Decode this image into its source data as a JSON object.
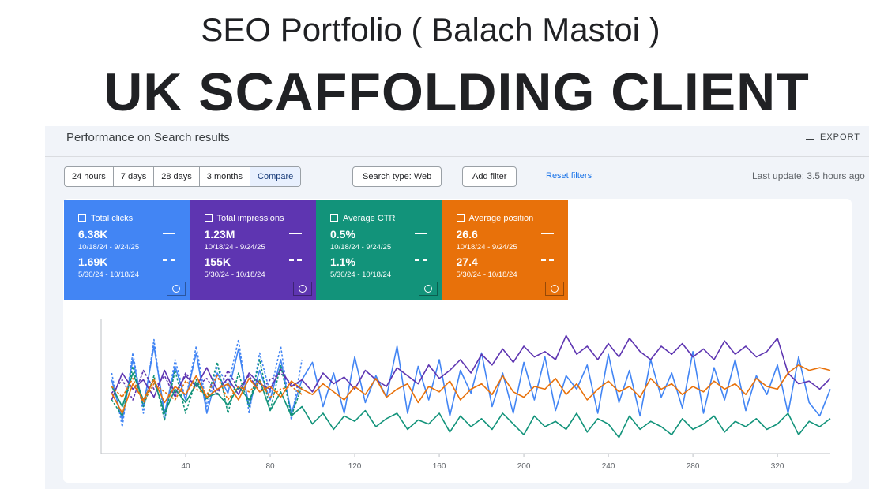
{
  "header": {
    "title": "SEO Portfolio ( Balach Mastoi )",
    "subtitle": "UK SCAFFOLDING CLIENT"
  },
  "panel": {
    "title": "Performance on Search results",
    "export": "EXPORT",
    "date_filters": [
      "24 hours",
      "7 days",
      "28 days",
      "3 months",
      "Compare"
    ],
    "search_type": "Search type: Web",
    "add_filter": "Add filter",
    "reset": "Reset filters",
    "last_update": "Last update: 3.5 hours ago"
  },
  "chart_data": {
    "type": "line",
    "x": [
      5,
      10,
      15,
      20,
      25,
      30,
      35,
      40,
      45,
      50,
      55,
      60,
      65,
      70,
      75,
      80,
      85,
      90,
      95,
      100,
      105,
      110,
      115,
      120,
      125,
      130,
      135,
      140,
      145,
      150,
      155,
      160,
      165,
      170,
      175,
      180,
      185,
      190,
      195,
      200,
      205,
      210,
      215,
      220,
      225,
      230,
      235,
      240,
      245,
      250,
      255,
      260,
      265,
      270,
      275,
      280,
      285,
      290,
      295,
      300,
      305,
      310,
      315,
      320,
      325,
      330,
      335,
      340,
      345
    ],
    "xlim": [
      0,
      345
    ],
    "xticks": [
      40,
      80,
      120,
      160,
      200,
      240,
      280,
      320
    ],
    "ylim": [
      0,
      100
    ],
    "series": [
      {
        "name": "Total clicks",
        "color": "#4285f4",
        "current": "6.38K",
        "current_range": "10/18/24 - 9/24/25",
        "previous": "1.69K",
        "previous_range": "5/30/24 - 10/18/24",
        "values": [
          55,
          25,
          70,
          35,
          80,
          30,
          65,
          40,
          75,
          30,
          60,
          45,
          78,
          35,
          62,
          40,
          70,
          30,
          55,
          68,
          35,
          60,
          30,
          72,
          38,
          58,
          42,
          80,
          30,
          65,
          40,
          70,
          28,
          62,
          45,
          75,
          35,
          60,
          30,
          68,
          40,
          72,
          32,
          58,
          48,
          66,
          30,
          74,
          38,
          62,
          28,
          70,
          42,
          60,
          34,
          76,
          30,
          64,
          40,
          70,
          32,
          58,
          44,
          66,
          30,
          72,
          38,
          28,
          48
        ],
        "previous_values": [
          60,
          20,
          75,
          30,
          85,
          25,
          70,
          40,
          80,
          35,
          65,
          50,
          85,
          30,
          75,
          45,
          80,
          25,
          70,
          null,
          null,
          null,
          null,
          null,
          null,
          null,
          null,
          null,
          null,
          null,
          null,
          null,
          null,
          null,
          null,
          null,
          null,
          null,
          null,
          null,
          null,
          null,
          null,
          null,
          null,
          null,
          null,
          null,
          null,
          null,
          null,
          null,
          null,
          null,
          null,
          null,
          null,
          null,
          null,
          null,
          null,
          null,
          null,
          null,
          null,
          null,
          null,
          null,
          null
        ]
      },
      {
        "name": "Total impressions",
        "color": "#5e35b1",
        "current": "1.23M",
        "current_range": "10/18/24 - 9/24/25",
        "previous": "155K",
        "previous_range": "5/30/24 - 10/18/24",
        "values": [
          40,
          60,
          48,
          55,
          42,
          62,
          45,
          58,
          50,
          64,
          47,
          56,
          44,
          60,
          52,
          48,
          63,
          50,
          55,
          46,
          60,
          52,
          57,
          48,
          62,
          55,
          50,
          64,
          58,
          52,
          66,
          56,
          62,
          70,
          60,
          74,
          66,
          78,
          68,
          80,
          72,
          76,
          70,
          88,
          74,
          80,
          70,
          82,
          72,
          86,
          76,
          70,
          80,
          74,
          82,
          72,
          78,
          70,
          84,
          74,
          80,
          72,
          76,
          86,
          60,
          52,
          54,
          48,
          56
        ],
        "previous_values": [
          45,
          55,
          40,
          62,
          48,
          58,
          42,
          60,
          50,
          56,
          44,
          62,
          48,
          58,
          46,
          55,
          60,
          52,
          48,
          null,
          null,
          null,
          null,
          null,
          null,
          null,
          null,
          null,
          null,
          null,
          null,
          null,
          null,
          null,
          null,
          null,
          null,
          null,
          null,
          null,
          null,
          null,
          null,
          null,
          null,
          null,
          null,
          null,
          null,
          null,
          null,
          null,
          null,
          null,
          null,
          null,
          null,
          null,
          null,
          null,
          null,
          null,
          null,
          null,
          null,
          null,
          null,
          null,
          null
        ]
      },
      {
        "name": "Average CTR",
        "color": "#12937a",
        "current": "0.5%",
        "current_range": "10/18/24 - 9/24/25",
        "previous": "1.1%",
        "previous_range": "5/30/24 - 10/18/24",
        "values": [
          50,
          35,
          60,
          40,
          55,
          30,
          48,
          38,
          52,
          42,
          45,
          36,
          50,
          40,
          55,
          32,
          46,
          28,
          35,
          22,
          30,
          18,
          28,
          24,
          32,
          20,
          26,
          30,
          18,
          25,
          22,
          30,
          16,
          28,
          20,
          26,
          18,
          30,
          22,
          14,
          28,
          20,
          24,
          18,
          30,
          16,
          26,
          22,
          12,
          28,
          18,
          24,
          20,
          14,
          26,
          18,
          22,
          28,
          16,
          24,
          20,
          26,
          18,
          22,
          30,
          14,
          24,
          20,
          26
        ],
        "previous_values": [
          40,
          28,
          65,
          35,
          58,
          25,
          62,
          30,
          55,
          40,
          68,
          30,
          60,
          35,
          70,
          32,
          66,
          28,
          50,
          null,
          null,
          null,
          null,
          null,
          null,
          null,
          null,
          null,
          null,
          null,
          null,
          null,
          null,
          null,
          null,
          null,
          null,
          null,
          null,
          null,
          null,
          null,
          null,
          null,
          null,
          null,
          null,
          null,
          null,
          null,
          null,
          null,
          null,
          null,
          null,
          null,
          null,
          null,
          null,
          null,
          null,
          null,
          null,
          null,
          null,
          null,
          null,
          null,
          null
        ]
      },
      {
        "name": "Average position",
        "color": "#e8710a",
        "current": "26.6",
        "current_range": "10/18/24 - 9/24/25",
        "previous": "27.4",
        "previous_range": "5/30/24 - 10/18/24",
        "values": [
          45,
          30,
          52,
          40,
          55,
          38,
          50,
          44,
          58,
          42,
          48,
          52,
          40,
          56,
          46,
          50,
          42,
          54,
          48,
          44,
          52,
          46,
          40,
          50,
          44,
          56,
          42,
          48,
          52,
          38,
          50,
          46,
          54,
          40,
          48,
          52,
          44,
          58,
          46,
          42,
          50,
          48,
          56,
          44,
          52,
          40,
          48,
          54,
          46,
          50,
          42,
          56,
          48,
          52,
          44,
          50,
          46,
          54,
          48,
          52,
          44,
          56,
          50,
          48,
          60,
          66,
          62,
          64,
          62
        ],
        "previous_values": [
          50,
          42,
          56,
          38,
          52,
          46,
          40,
          54,
          48,
          44,
          58,
          40,
          50,
          46,
          54,
          42,
          48,
          50,
          44,
          null,
          null,
          null,
          null,
          null,
          null,
          null,
          null,
          null,
          null,
          null,
          null,
          null,
          null,
          null,
          null,
          null,
          null,
          null,
          null,
          null,
          null,
          null,
          null,
          null,
          null,
          null,
          null,
          null,
          null,
          null,
          null,
          null,
          null,
          null,
          null,
          null,
          null,
          null,
          null,
          null,
          null,
          null,
          null,
          null,
          null,
          null,
          null,
          null,
          null
        ]
      }
    ]
  }
}
